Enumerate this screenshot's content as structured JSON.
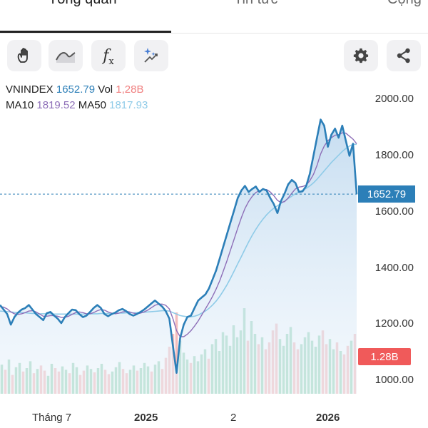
{
  "tabs": [
    {
      "label": "Tổng quan",
      "active": true
    },
    {
      "label": "Tin tức",
      "active": false
    },
    {
      "label": "Cộng",
      "active": false
    }
  ],
  "toolbar": {
    "left_icons": [
      "hand-pan-icon",
      "line-style-icon",
      "fx-indicator-icon",
      "magic-draw-icon"
    ],
    "fx_label": "f",
    "fx_sub": "x",
    "right_icons": [
      "gear-icon",
      "share-icon"
    ]
  },
  "legend": {
    "symbol": "VNINDEX",
    "price": "1652.79",
    "vol_label": "Vol",
    "vol": "1,28B",
    "ma10_label": "MA10",
    "ma10": "1819.52",
    "ma50_label": "MA50",
    "ma50": "1817.93"
  },
  "y_axis_labels": [
    "2000.00",
    "1800.00",
    "1600.00",
    "1400.00",
    "1200.00",
    "1000.00"
  ],
  "price_tag": "1652.79",
  "volume_tag": "1.28B",
  "x_axis_labels": [
    {
      "text": "Tháng 7",
      "bold": false
    },
    {
      "text": "2025",
      "bold": true
    },
    {
      "text": "2",
      "bold": false
    },
    {
      "text": "2026",
      "bold": true
    }
  ],
  "colors": {
    "price_line": "#2c7fb8",
    "ma10": "#8e6fb8",
    "ma50": "#8fcbe8",
    "vol_up": "#7fc9a4",
    "vol_down": "#f2a7a7",
    "tag_price": "#2c7fb8",
    "tag_volume": "#f05a5a"
  },
  "chart_data": {
    "type": "line",
    "series": [
      {
        "name": "VNINDEX",
        "values": [
          1285,
          1270,
          1255,
          1220,
          1245,
          1260,
          1270,
          1275,
          1285,
          1270,
          1255,
          1245,
          1235,
          1258,
          1262,
          1250,
          1240,
          1225,
          1245,
          1258,
          1270,
          1268,
          1255,
          1245,
          1250,
          1262,
          1275,
          1285,
          1275,
          1255,
          1248,
          1255,
          1260,
          1268,
          1272,
          1265,
          1255,
          1250,
          1255,
          1262,
          1270,
          1280,
          1290,
          1300,
          1290,
          1280,
          1265,
          1240,
          1150,
          1060,
          1175,
          1220,
          1245,
          1250,
          1275,
          1300,
          1310,
          1320,
          1340,
          1370,
          1400,
          1440,
          1480,
          1520,
          1560,
          1600,
          1640,
          1665,
          1680,
          1660,
          1670,
          1678,
          1660,
          1670,
          1665,
          1640,
          1620,
          1590,
          1630,
          1655,
          1685,
          1700,
          1690,
          1660,
          1662,
          1680,
          1720,
          1780,
          1840,
          1900,
          1880,
          1810,
          1850,
          1870,
          1840,
          1880,
          1830,
          1780,
          1820,
          1652.79
        ]
      },
      {
        "name": "MA10",
        "values": [
          1280,
          1278,
          1272,
          1262,
          1256,
          1254,
          1256,
          1260,
          1265,
          1266,
          1262,
          1255,
          1248,
          1248,
          1250,
          1250,
          1248,
          1244,
          1244,
          1248,
          1254,
          1260,
          1262,
          1260,
          1256,
          1256,
          1260,
          1266,
          1270,
          1268,
          1262,
          1258,
          1256,
          1258,
          1262,
          1264,
          1262,
          1258,
          1256,
          1258,
          1262,
          1268,
          1276,
          1284,
          1288,
          1288,
          1284,
          1272,
          1240,
          1200,
          1180,
          1180,
          1188,
          1200,
          1215,
          1232,
          1252,
          1272,
          1292,
          1314,
          1338,
          1366,
          1398,
          1432,
          1468,
          1504,
          1540,
          1575,
          1605,
          1628,
          1645,
          1658,
          1664,
          1668,
          1668,
          1660,
          1648,
          1632,
          1625,
          1628,
          1640,
          1656,
          1670,
          1676,
          1678,
          1683,
          1697,
          1718,
          1748,
          1786,
          1812,
          1830,
          1840,
          1848,
          1850,
          1856,
          1855,
          1845,
          1835,
          1820
        ]
      },
      {
        "name": "MA50",
        "values": [
          1265,
          1264,
          1263,
          1262,
          1261,
          1260,
          1260,
          1259,
          1258,
          1257,
          1257,
          1256,
          1256,
          1256,
          1256,
          1255,
          1255,
          1255,
          1255,
          1255,
          1255,
          1255,
          1255,
          1255,
          1256,
          1256,
          1256,
          1256,
          1257,
          1257,
          1257,
          1257,
          1258,
          1258,
          1258,
          1259,
          1259,
          1259,
          1260,
          1260,
          1261,
          1262,
          1263,
          1264,
          1265,
          1266,
          1266,
          1265,
          1260,
          1255,
          1250,
          1248,
          1246,
          1246,
          1248,
          1252,
          1258,
          1265,
          1274,
          1285,
          1298,
          1314,
          1332,
          1352,
          1374,
          1398,
          1422,
          1446,
          1470,
          1494,
          1516,
          1536,
          1554,
          1570,
          1584,
          1596,
          1606,
          1614,
          1622,
          1630,
          1638,
          1646,
          1654,
          1660,
          1666,
          1672,
          1680,
          1690,
          1702,
          1716,
          1730,
          1744,
          1758,
          1770,
          1782,
          1794,
          1804,
          1812,
          1818,
          1817.93
        ]
      }
    ],
    "last_price": 1652.79,
    "ylim": [
      960,
      2060
    ],
    "y_ticks": [
      1000,
      1200,
      1400,
      1600,
      1800,
      2000
    ],
    "volume_bars": [
      0.34,
      0.28,
      0.4,
      0.22,
      0.31,
      0.36,
      0.26,
      0.3,
      0.38,
      0.24,
      0.29,
      0.33,
      0.27,
      0.21,
      0.35,
      0.3,
      0.26,
      0.32,
      0.28,
      0.24,
      0.36,
      0.31,
      0.22,
      0.27,
      0.33,
      0.29,
      0.25,
      0.3,
      0.35,
      0.28,
      0.23,
      0.26,
      0.31,
      0.37,
      0.29,
      0.24,
      0.28,
      0.33,
      0.27,
      0.3,
      0.36,
      0.32,
      0.26,
      0.34,
      0.38,
      0.29,
      0.42,
      0.55,
      0.7,
      0.95,
      0.62,
      0.48,
      0.4,
      0.36,
      0.44,
      0.38,
      0.46,
      0.52,
      0.41,
      0.58,
      0.64,
      0.5,
      0.72,
      0.68,
      0.56,
      0.8,
      0.66,
      0.74,
      1.0,
      0.62,
      0.85,
      0.7,
      0.58,
      0.66,
      0.52,
      0.6,
      0.74,
      0.82,
      0.64,
      0.56,
      0.7,
      0.78,
      0.6,
      0.52,
      0.58,
      0.66,
      0.72,
      0.62,
      0.55,
      0.68,
      0.74,
      0.58,
      0.64,
      0.52,
      0.6,
      0.5,
      0.46,
      0.56,
      0.62,
      0.7
    ],
    "volume_bar_up": [
      1,
      0,
      1,
      0,
      1,
      1,
      0,
      1,
      1,
      0,
      1,
      0,
      0,
      1,
      1,
      0,
      0,
      1,
      1,
      0,
      1,
      1,
      0,
      0,
      1,
      1,
      0,
      1,
      1,
      0,
      0,
      1,
      1,
      1,
      0,
      0,
      1,
      1,
      0,
      1,
      1,
      1,
      0,
      1,
      1,
      0,
      0,
      0,
      0,
      0,
      1,
      1,
      1,
      0,
      1,
      1,
      1,
      1,
      0,
      1,
      1,
      1,
      1,
      1,
      1,
      1,
      1,
      1,
      1,
      0,
      1,
      1,
      0,
      1,
      0,
      0,
      0,
      0,
      1,
      1,
      1,
      1,
      0,
      0,
      1,
      1,
      1,
      1,
      1,
      1,
      0,
      0,
      1,
      1,
      0,
      1,
      0,
      0,
      1,
      0
    ],
    "current_volume": 1.28
  }
}
